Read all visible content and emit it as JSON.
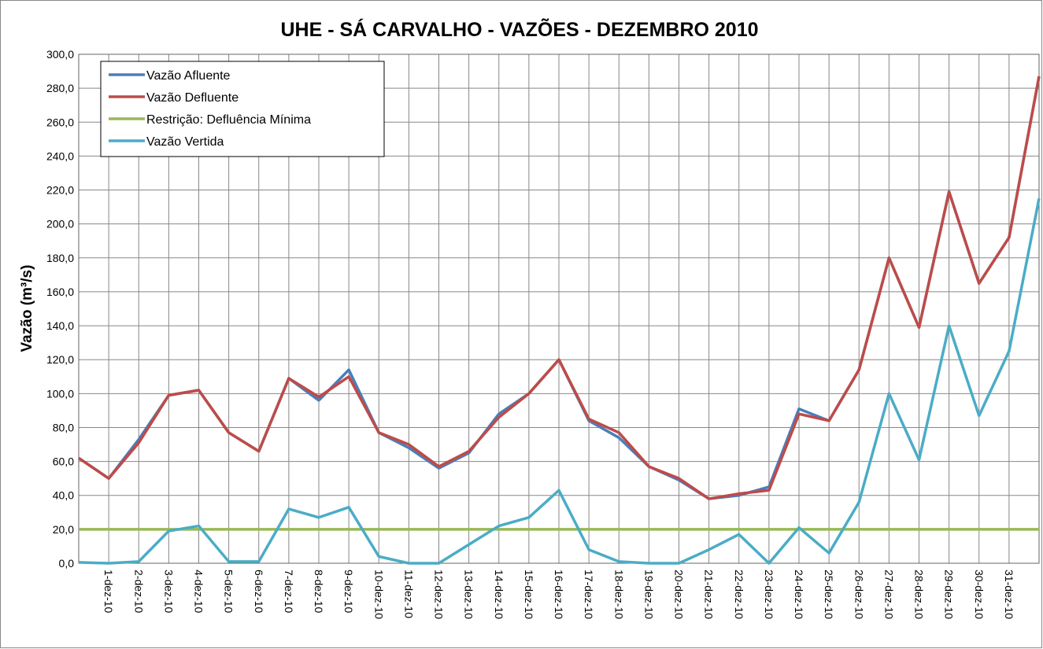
{
  "chart_data": {
    "type": "line",
    "title": "UHE - SÁ CARVALHO - VAZÕES - DEZEMBRO 2010",
    "ylabel": "Vazão (m³/s)",
    "categories": [
      null,
      "1-dez-10",
      "2-dez-10",
      "3-dez-10",
      "4-dez-10",
      "5-dez-10",
      "6-dez-10",
      "7-dez-10",
      "8-dez-10",
      "9-dez-10",
      "10-dez-10",
      "11-dez-10",
      "12-dez-10",
      "13-dez-10",
      "14-dez-10",
      "15-dez-10",
      "16-dez-10",
      "17-dez-10",
      "18-dez-10",
      "19-dez-10",
      "20-dez-10",
      "21-dez-10",
      "22-dez-10",
      "23-dez-10",
      "24-dez-10",
      "25-dez-10",
      "26-dez-10",
      "27-dez-10",
      "28-dez-10",
      "29-dez-10",
      "30-dez-10",
      "31-dez-10",
      null
    ],
    "series": [
      {
        "name": "Vazão Afluente",
        "color": "#4a7ebb",
        "values": [
          62,
          50,
          73,
          99,
          102,
          77,
          66,
          109,
          96,
          114,
          77,
          68,
          56,
          65,
          88,
          100,
          120,
          84,
          74,
          57,
          49,
          38,
          40,
          45,
          91,
          84,
          114,
          180,
          139,
          219,
          165,
          192,
          287
        ]
      },
      {
        "name": "Vazão Defluente",
        "color": "#be4b48",
        "values": [
          62,
          50,
          71,
          99,
          102,
          77,
          66,
          109,
          98,
          110,
          77,
          70,
          57,
          66,
          86,
          100,
          120,
          85,
          77,
          57,
          50,
          38,
          41,
          43,
          88,
          84,
          114,
          180,
          139,
          219,
          165,
          192,
          287
        ]
      },
      {
        "name": "Restrição: Defluência Mínima",
        "color": "#98b954",
        "values": [
          20,
          20,
          20,
          20,
          20,
          20,
          20,
          20,
          20,
          20,
          20,
          20,
          20,
          20,
          20,
          20,
          20,
          20,
          20,
          20,
          20,
          20,
          20,
          20,
          20,
          20,
          20,
          20,
          20,
          20,
          20,
          20,
          20
        ]
      },
      {
        "name": "Vazão Vertida",
        "color": "#4bacc6",
        "values": [
          0.5,
          0,
          1,
          19,
          22,
          1,
          1,
          32,
          27,
          33,
          4,
          0,
          0,
          11,
          22,
          27,
          43,
          8,
          1,
          0,
          0,
          8,
          17,
          0,
          21,
          6,
          36,
          100,
          61,
          140,
          87,
          125,
          215
        ]
      }
    ],
    "ylim": [
      0,
      300
    ],
    "yticks": [
      {
        "value": 0,
        "label": "0,0"
      },
      {
        "value": 20,
        "label": "20,0"
      },
      {
        "value": 40,
        "label": "40,0"
      },
      {
        "value": 60,
        "label": "60,0"
      },
      {
        "value": 80,
        "label": "80,0"
      },
      {
        "value": 100,
        "label": "100,0"
      },
      {
        "value": 120,
        "label": "120,0"
      },
      {
        "value": 140,
        "label": "140,0"
      },
      {
        "value": 160,
        "label": "160,0"
      },
      {
        "value": 180,
        "label": "180,0"
      },
      {
        "value": 200,
        "label": "200,0"
      },
      {
        "value": 220,
        "label": "220,0"
      },
      {
        "value": 240,
        "label": "240,0"
      },
      {
        "value": 260,
        "label": "260,0"
      },
      {
        "value": 280,
        "label": "280,0"
      },
      {
        "value": 300,
        "label": "300,0"
      }
    ],
    "grid": true,
    "legend": "upper left"
  }
}
